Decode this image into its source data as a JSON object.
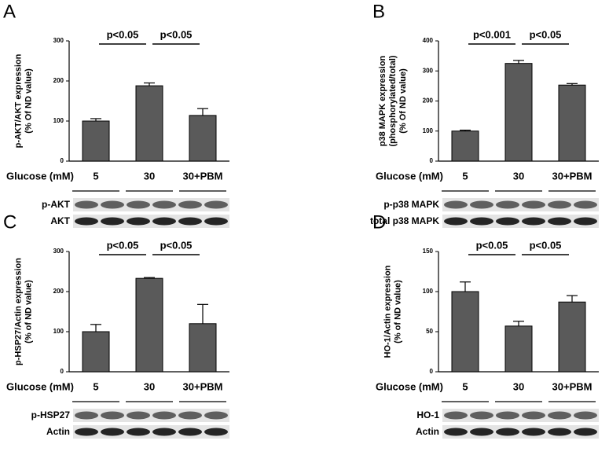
{
  "chart_data": [
    {
      "type": "bar",
      "panel": "A",
      "ylabel": [
        "p-AKT/AKT expression",
        "(% Of ND value)"
      ],
      "xlabel": "Glucose (mM)",
      "categories": [
        "5",
        "30",
        "30+PBM"
      ],
      "values": [
        100,
        188,
        114
      ],
      "errors": [
        6,
        7,
        17
      ],
      "color": "#5a5a5a",
      "ylim": [
        0,
        300
      ],
      "yticks": [
        0,
        100,
        200,
        300
      ],
      "annotations": [
        "p<0.05",
        "p<0.05"
      ],
      "blot_labels": [
        "p-AKT",
        "AKT"
      ]
    },
    {
      "type": "bar",
      "panel": "B",
      "ylabel": [
        "p38 MAPK expression",
        "(phosphorylated/total)",
        "(% Of ND value)"
      ],
      "xlabel": "Glucose (mM)",
      "categories": [
        "5",
        "30",
        "30+PBM"
      ],
      "values": [
        100,
        325,
        253
      ],
      "errors": [
        3,
        10,
        5
      ],
      "color": "#5a5a5a",
      "ylim": [
        0,
        400
      ],
      "yticks": [
        0,
        100,
        200,
        300,
        400
      ],
      "annotations": [
        "p<0.001",
        "p<0.05"
      ],
      "blot_labels": [
        "p-p38 MAPK",
        "total p38 MAPK"
      ]
    },
    {
      "type": "bar",
      "panel": "C",
      "ylabel": [
        "p-HSP27/Actin expression",
        "(% of ND value)"
      ],
      "xlabel": "Glucose (mM)",
      "categories": [
        "5",
        "30",
        "30+PBM"
      ],
      "values": [
        100,
        233,
        120
      ],
      "errors": [
        18,
        2,
        48
      ],
      "color": "#5a5a5a",
      "ylim": [
        0,
        300
      ],
      "yticks": [
        0,
        100,
        200,
        300
      ],
      "annotations": [
        "p<0.05",
        "p<0.05"
      ],
      "blot_labels": [
        "p-HSP27",
        "Actin"
      ]
    },
    {
      "type": "bar",
      "panel": "D",
      "ylabel": [
        "HO-1/Actin expression",
        "(% of ND value)"
      ],
      "xlabel": "Glucose (mM)",
      "categories": [
        "5",
        "30",
        "30+PBM"
      ],
      "values": [
        100,
        57,
        87
      ],
      "errors": [
        12,
        6,
        8
      ],
      "color": "#5a5a5a",
      "ylim": [
        0,
        150
      ],
      "yticks": [
        0,
        50,
        100,
        150
      ],
      "annotations": [
        "p<0.05",
        "p<0.05"
      ],
      "blot_labels": [
        "HO-1",
        "Actin"
      ]
    }
  ]
}
